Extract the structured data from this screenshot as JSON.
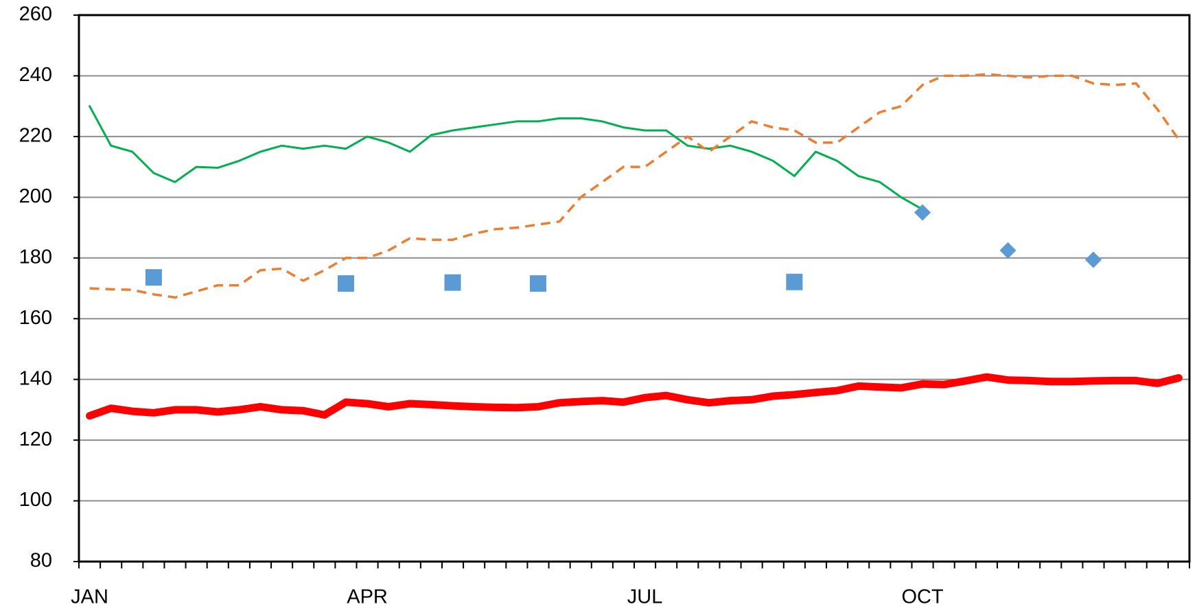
{
  "chart_data": {
    "type": "line",
    "categories": [
      "JAN",
      null,
      null,
      null,
      null,
      null,
      null,
      null,
      null,
      null,
      null,
      null,
      null,
      "APR",
      null,
      null,
      null,
      null,
      null,
      null,
      null,
      null,
      null,
      null,
      null,
      null,
      "JUL",
      null,
      null,
      null,
      null,
      null,
      null,
      null,
      null,
      null,
      null,
      null,
      null,
      "OCT",
      null,
      null,
      null,
      null,
      null,
      null,
      null,
      null,
      null,
      null,
      null,
      null
    ],
    "ylim": [
      80,
      260
    ],
    "yticks": [
      80,
      100,
      120,
      140,
      160,
      180,
      200,
      220,
      240,
      260
    ],
    "grid": true,
    "series": [
      {
        "color": "#00b050",
        "width": 3,
        "values": [
          230,
          217,
          215,
          208,
          205,
          210,
          209.7,
          212,
          215,
          217,
          216,
          217,
          216,
          220,
          218,
          215,
          220.5,
          222,
          223,
          224,
          225,
          225,
          226,
          226,
          225,
          223,
          222,
          222,
          217,
          216,
          217,
          215,
          212,
          207,
          215,
          212,
          207,
          205,
          200,
          196,
          null,
          null,
          null,
          null,
          null,
          null,
          null,
          null,
          null,
          null,
          null,
          null
        ]
      },
      {
        "color": "#ed7d31",
        "width": 3.5,
        "dash": true,
        "values": [
          170,
          169.7,
          169.5,
          168,
          167,
          169,
          171,
          171,
          176,
          176.5,
          172.5,
          176,
          180,
          180,
          182.5,
          186.5,
          186,
          186,
          188,
          189.5,
          190,
          191,
          192,
          200,
          205,
          210,
          210,
          215,
          220,
          215,
          220,
          225,
          223,
          222,
          218,
          218,
          223,
          228,
          230,
          237,
          240,
          240,
          240.5,
          240,
          239.5,
          240,
          240,
          237.5,
          237,
          237.5,
          229,
          219
        ]
      },
      {
        "color": "#ff0000",
        "width": 11,
        "values": [
          128,
          130.5,
          129.5,
          129,
          130,
          130,
          129.3,
          130,
          131,
          130,
          129.7,
          128.3,
          132.5,
          132,
          131,
          132,
          131.7,
          131.3,
          131,
          130.8,
          130.7,
          131,
          132.3,
          132.7,
          133,
          132.5,
          134,
          134.7,
          133.3,
          132.3,
          133,
          133.3,
          134.5,
          135,
          135.7,
          136.3,
          137.8,
          137.5,
          137.2,
          138.5,
          138.3,
          139.5,
          140.8,
          139.8,
          139.6,
          139.3,
          139.3,
          139.5,
          139.6,
          139.6,
          138.7,
          140.5
        ]
      },
      {
        "color": "#5b9bd5",
        "marker": "square",
        "values": [
          null,
          null,
          null,
          173.6,
          null,
          null,
          null,
          null,
          null,
          null,
          null,
          null,
          171.6,
          null,
          null,
          null,
          null,
          171.9,
          null,
          null,
          null,
          171.6,
          null,
          null,
          null,
          null,
          null,
          null,
          null,
          null,
          null,
          null,
          null,
          172.1,
          null,
          null,
          null,
          null,
          null,
          null,
          null,
          null,
          null,
          null,
          null,
          null,
          null,
          null,
          null,
          null,
          null,
          null
        ]
      },
      {
        "color": "#5b9bd5",
        "marker": "diamond",
        "values": [
          null,
          null,
          null,
          null,
          null,
          null,
          null,
          null,
          null,
          null,
          null,
          null,
          null,
          null,
          null,
          null,
          null,
          null,
          null,
          null,
          null,
          null,
          null,
          null,
          null,
          null,
          null,
          null,
          null,
          null,
          null,
          null,
          null,
          null,
          null,
          null,
          null,
          null,
          null,
          195,
          null,
          null,
          null,
          182.5,
          null,
          null,
          null,
          179.4,
          null,
          null,
          null,
          null
        ]
      }
    ]
  }
}
